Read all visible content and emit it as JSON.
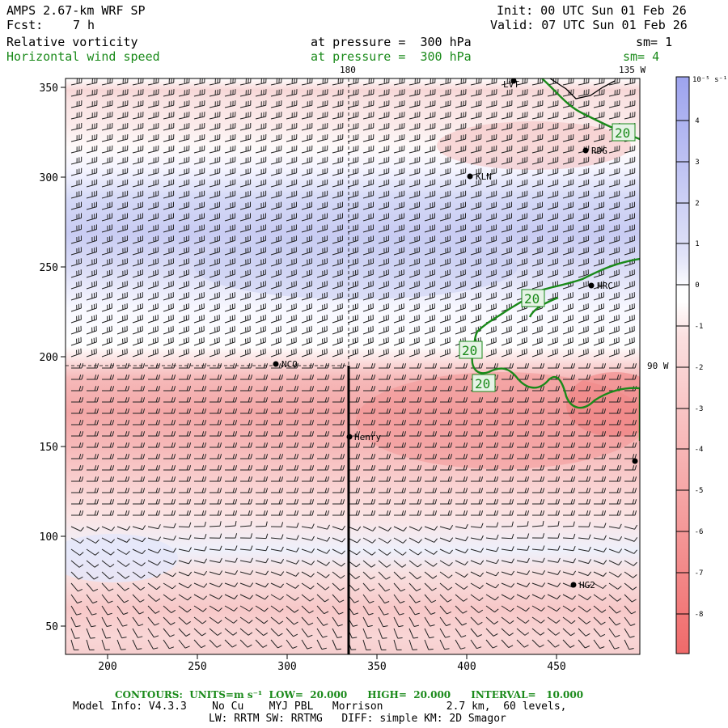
{
  "header": {
    "model_title": "AMPS 2.67-km WRF SP",
    "init": "Init: 00 UTC Sun 01 Feb 26",
    "fcst_label": "Fcst:",
    "fcst_value": "7 h",
    "valid": "Valid: 07 UTC Sun 01 Feb 26",
    "field1_name": "Relative vorticity",
    "field1_level": "at pressure =  300 hPa",
    "field1_smooth": "sm= 1",
    "field2_name": "Horizontal wind speed",
    "field2_level": "at pressure =  300 hPa",
    "field2_smooth": "sm= 4"
  },
  "map": {
    "top_labels": [
      "180",
      "135 W"
    ],
    "right_labels": [
      "90 W"
    ],
    "stations": [
      "LVT",
      "RDG",
      "KLN",
      "HRC",
      "NCO",
      "Henry",
      "HG2"
    ],
    "contour_labels": [
      "20",
      "20",
      "20",
      "20"
    ]
  },
  "colorbar": {
    "units": "10⁻⁵ s⁻¹",
    "ticks": [
      "4",
      "3",
      "2",
      "1",
      "0",
      "-1",
      "-2",
      "-3",
      "-4",
      "-5",
      "-6",
      "-7",
      "-8"
    ],
    "colors": {
      "positive": "#a9a9f0",
      "negative": "#f27474",
      "zero": "#ffffff"
    }
  },
  "axes": {
    "y_ticks": [
      "350",
      "300",
      "250",
      "200",
      "150",
      "100",
      "50"
    ],
    "x_ticks": [
      "200",
      "250",
      "300",
      "350",
      "400",
      "450"
    ]
  },
  "footer": {
    "contours": "CONTOURS:  UNITS=m s⁻¹  LOW=  20.000      HIGH=  20.000      INTERVAL=   10.000",
    "model_info": "Model Info: V4.3.3    No Cu    MYJ PBL   Morrison          2.7 km,  60 levels,",
    "physics": "LW: RRTM SW: RRTMG   DIFF: simple KM: 2D Smagor"
  }
}
